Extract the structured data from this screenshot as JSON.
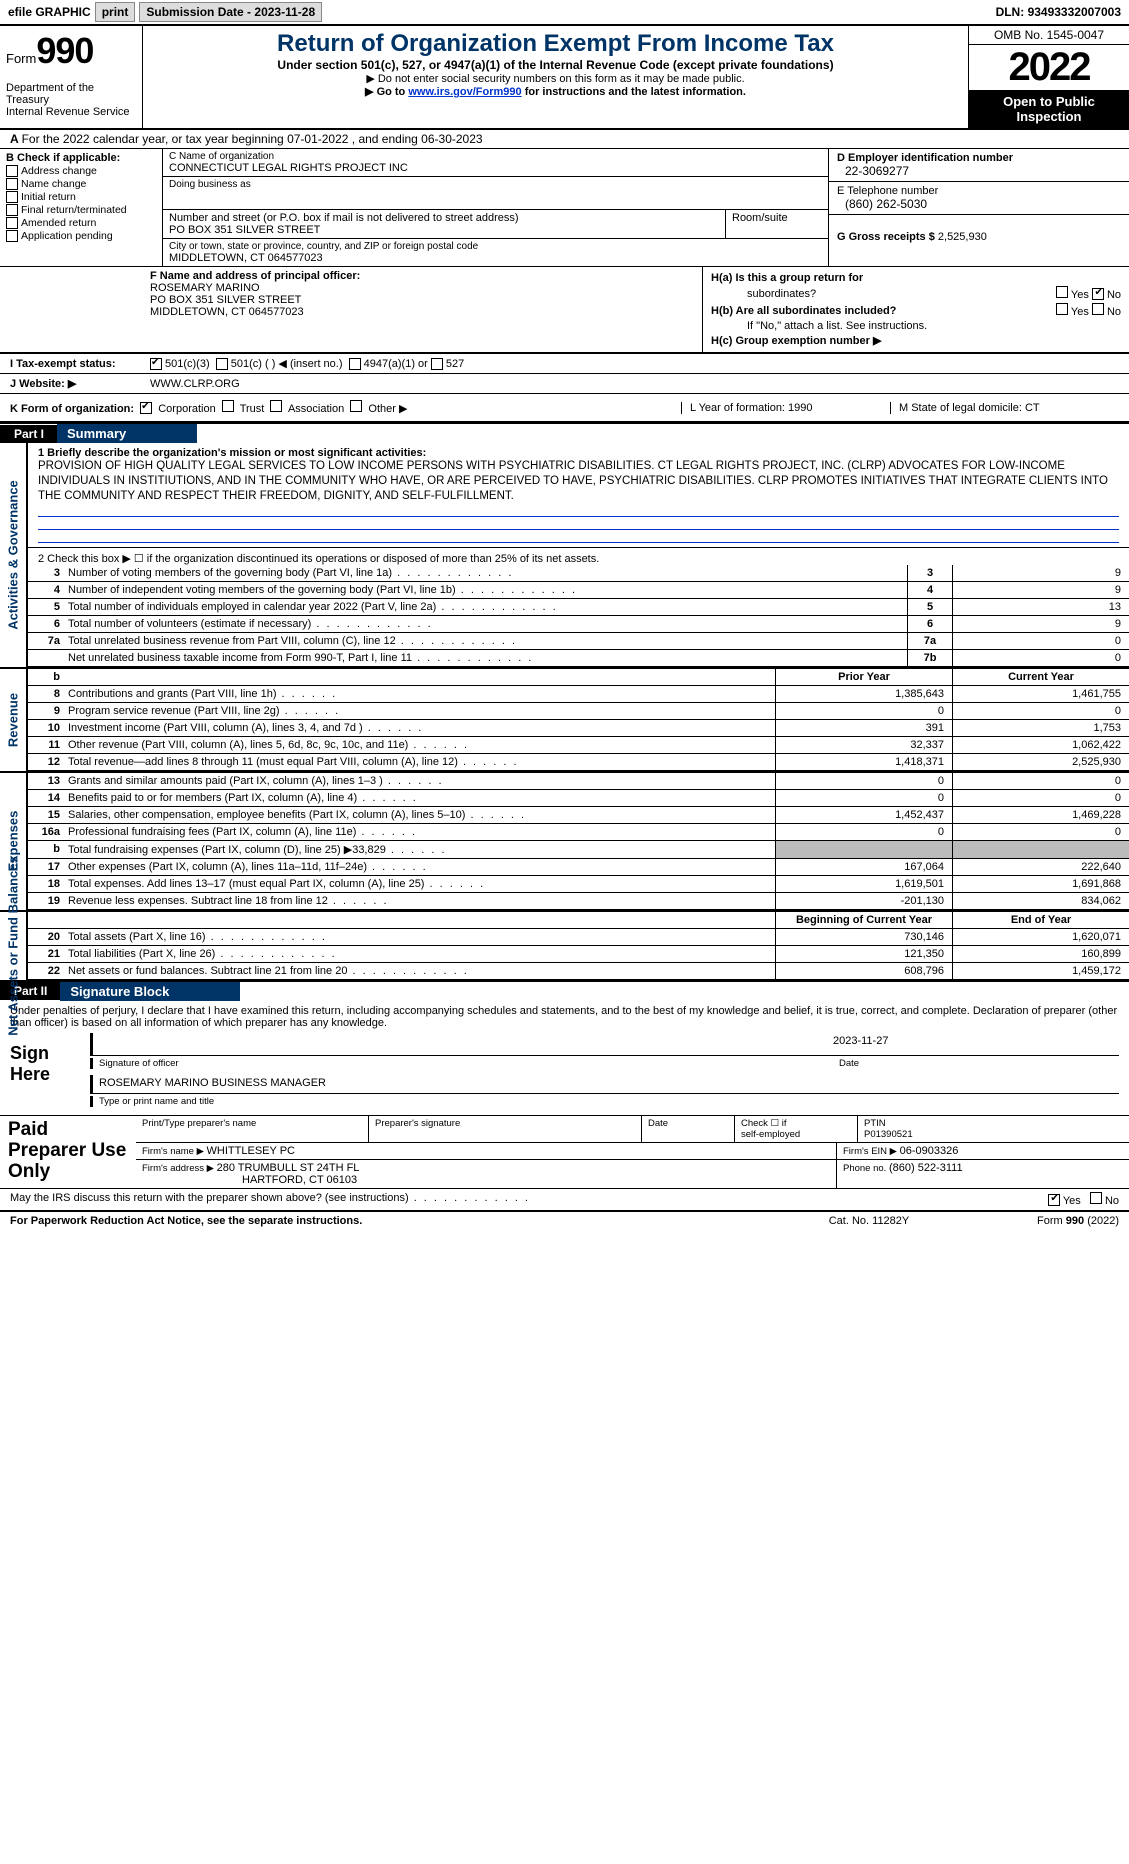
{
  "topbar": {
    "efile": "efile GRAPHIC",
    "print": "print",
    "sub_lbl": "Submission Date - ",
    "sub_date": "2023-11-28",
    "dln_lbl": "DLN: ",
    "dln": "93493332007003"
  },
  "header": {
    "form_word": "Form",
    "form_num": "990",
    "dept": "Department of the Treasury",
    "irs": "Internal Revenue Service",
    "title": "Return of Organization Exempt From Income Tax",
    "sub": "Under section 501(c), 527, or 4947(a)(1) of the Internal Revenue Code (except private foundations)",
    "note1": "▶ Do not enter social security numbers on this form as it may be made public.",
    "note2_pre": "▶ Go to ",
    "note2_link": "www.irs.gov/Form990",
    "note2_post": " for instructions and the latest information.",
    "omb": "OMB No. 1545-0047",
    "year": "2022",
    "open": "Open to Public Inspection"
  },
  "lineA": "For the 2022 calendar year, or tax year beginning 07-01-2022    , and ending 06-30-2023",
  "B": {
    "hdr": "B Check if applicable:",
    "opts": [
      "Address change",
      "Name change",
      "Initial return",
      "Final return/terminated",
      "Amended return",
      "Application pending"
    ]
  },
  "C": {
    "name_lbl": "C Name of organization",
    "name": "CONNECTICUT LEGAL RIGHTS PROJECT INC",
    "dba_lbl": "Doing business as",
    "dba": "",
    "addr_lbl": "Number and street (or P.O. box if mail is not delivered to street address)",
    "addr": "PO BOX 351 SILVER STREET",
    "room_lbl": "Room/suite",
    "city_lbl": "City or town, state or province, country, and ZIP or foreign postal code",
    "city": "MIDDLETOWN, CT  064577023"
  },
  "D": {
    "ein_lbl": "D Employer identification number",
    "ein": "22-3069277",
    "tel_lbl": "E Telephone number",
    "tel": "(860) 262-5030",
    "gross_lbl": "G Gross receipts $ ",
    "gross": "2,525,930"
  },
  "F": {
    "hdr": "F  Name and address of principal officer:",
    "name": "ROSEMARY MARINO",
    "addr1": "PO BOX 351 SILVER STREET",
    "addr2": "MIDDLETOWN, CT  064577023"
  },
  "H": {
    "a": "H(a)  Is this a group return for",
    "a2": "subordinates?",
    "b": "H(b)  Are all subordinates included?",
    "b2": "If \"No,\" attach a list. See instructions.",
    "c": "H(c)  Group exemption number ▶"
  },
  "I": {
    "lbl": "I    Tax-exempt status:",
    "o1": "501(c)(3)",
    "o2": "501(c) (  ) ◀ (insert no.)",
    "o3": "4947(a)(1) or",
    "o4": "527"
  },
  "J": {
    "lbl": "J   Website: ▶",
    "val": "WWW.CLRP.ORG"
  },
  "K": {
    "lbl": "K Form of organization:",
    "opts": [
      "Corporation",
      "Trust",
      "Association",
      "Other ▶"
    ],
    "L": "L Year of formation: 1990",
    "M": "M State of legal domicile: CT"
  },
  "part1": {
    "num": "Part I",
    "title": "Summary"
  },
  "mission": {
    "lbl": "1   Briefly describe the organization's mission or most significant activities:",
    "text": "PROVISION OF HIGH QUALITY LEGAL SERVICES TO LOW INCOME PERSONS WITH PSYCHIATRIC DISABILITIES. CT LEGAL RIGHTS PROJECT, INC. (CLRP) ADVOCATES FOR LOW-INCOME INDIVIDUALS IN INSTITIUTIONS, AND IN THE COMMUNITY WHO HAVE, OR ARE PERCEIVED TO HAVE, PSYCHIATRIC DISABILITIES. CLRP PROMOTES INITIATIVES THAT INTEGRATE CLIENTS INTO THE COMMUNITY AND RESPECT THEIR FREEDOM, DIGNITY, AND SELF-FULFILLMENT."
  },
  "line2": "2    Check this box ▶ ☐  if the organization discontinued its operations or disposed of more than 25% of its net assets.",
  "gov_lines": [
    {
      "n": "3",
      "d": "Number of voting members of the governing body (Part VI, line 1a)",
      "nc": "3",
      "v": "9"
    },
    {
      "n": "4",
      "d": "Number of independent voting members of the governing body (Part VI, line 1b)",
      "nc": "4",
      "v": "9"
    },
    {
      "n": "5",
      "d": "Total number of individuals employed in calendar year 2022 (Part V, line 2a)",
      "nc": "5",
      "v": "13"
    },
    {
      "n": "6",
      "d": "Total number of volunteers (estimate if necessary)",
      "nc": "6",
      "v": "9"
    },
    {
      "n": "7a",
      "d": "Total unrelated business revenue from Part VIII, column (C), line 12",
      "nc": "7a",
      "v": "0"
    },
    {
      "n": "",
      "d": "Net unrelated business taxable income from Form 990-T, Part I, line 11",
      "nc": "7b",
      "v": "0"
    }
  ],
  "py_cy_hdr": {
    "b": "b",
    "py": "Prior Year",
    "cy": "Current Year"
  },
  "rev_lines": [
    {
      "n": "8",
      "d": "Contributions and grants (Part VIII, line 1h)",
      "p": "1,385,643",
      "c": "1,461,755"
    },
    {
      "n": "9",
      "d": "Program service revenue (Part VIII, line 2g)",
      "p": "0",
      "c": "0"
    },
    {
      "n": "10",
      "d": "Investment income (Part VIII, column (A), lines 3, 4, and 7d )",
      "p": "391",
      "c": "1,753"
    },
    {
      "n": "11",
      "d": "Other revenue (Part VIII, column (A), lines 5, 6d, 8c, 9c, 10c, and 11e)",
      "p": "32,337",
      "c": "1,062,422"
    },
    {
      "n": "12",
      "d": "Total revenue—add lines 8 through 11 (must equal Part VIII, column (A), line 12)",
      "p": "1,418,371",
      "c": "2,525,930"
    }
  ],
  "exp_lines": [
    {
      "n": "13",
      "d": "Grants and similar amounts paid (Part IX, column (A), lines 1–3 )",
      "p": "0",
      "c": "0"
    },
    {
      "n": "14",
      "d": "Benefits paid to or for members (Part IX, column (A), line 4)",
      "p": "0",
      "c": "0"
    },
    {
      "n": "15",
      "d": "Salaries, other compensation, employee benefits (Part IX, column (A), lines 5–10)",
      "p": "1,452,437",
      "c": "1,469,228"
    },
    {
      "n": "16a",
      "d": "Professional fundraising fees (Part IX, column (A), line 11e)",
      "p": "0",
      "c": "0"
    },
    {
      "n": "b",
      "d": "Total fundraising expenses (Part IX, column (D), line 25) ▶33,829",
      "p": "grey",
      "c": "grey"
    },
    {
      "n": "17",
      "d": "Other expenses (Part IX, column (A), lines 11a–11d, 11f–24e)",
      "p": "167,064",
      "c": "222,640"
    },
    {
      "n": "18",
      "d": "Total expenses. Add lines 13–17 (must equal Part IX, column (A), line 25)",
      "p": "1,619,501",
      "c": "1,691,868"
    },
    {
      "n": "19",
      "d": "Revenue less expenses. Subtract line 18 from line 12",
      "p": "-201,130",
      "c": "834,062"
    }
  ],
  "na_hdr": {
    "py": "Beginning of Current Year",
    "cy": "End of Year"
  },
  "na_lines": [
    {
      "n": "20",
      "d": "Total assets (Part X, line 16)",
      "p": "730,146",
      "c": "1,620,071"
    },
    {
      "n": "21",
      "d": "Total liabilities (Part X, line 26)",
      "p": "121,350",
      "c": "160,899"
    },
    {
      "n": "22",
      "d": "Net assets or fund balances. Subtract line 21 from line 20",
      "p": "608,796",
      "c": "1,459,172"
    }
  ],
  "part2": {
    "num": "Part II",
    "title": "Signature Block"
  },
  "sig": {
    "decl": "Under penalties of perjury, I declare that I have examined this return, including accompanying schedules and statements, and to the best of my knowledge and belief, it is true, correct, and complete. Declaration of preparer (other than officer) is based on all information of which preparer has any knowledge.",
    "here": "Sign Here",
    "sig_of": "Signature of officer",
    "date": "Date",
    "date_val": "2023-11-27",
    "name": "ROSEMARY MARINO  BUSINESS MANAGER",
    "name_lbl": "Type or print name and title"
  },
  "paid": {
    "hdr": "Paid Preparer Use Only",
    "c1": "Print/Type preparer's name",
    "c2": "Preparer's signature",
    "c3": "Date",
    "c4a": "Check ☐ if",
    "c4b": "self-employed",
    "c5a": "PTIN",
    "c5b": "P01390521",
    "firm_lbl": "Firm's name      ▶ ",
    "firm": "WHITTLESEY PC",
    "fein_lbl": "Firm's EIN ▶ ",
    "fein": "06-0903326",
    "addr_lbl": "Firm's address ▶ ",
    "addr1": "280 TRUMBULL ST 24TH FL",
    "addr2": "HARTFORD, CT  06103",
    "phone_lbl": "Phone no. ",
    "phone": "(860) 522-3111"
  },
  "may": "May the IRS discuss this return with the preparer shown above? (see instructions)",
  "footer": {
    "l": "For Paperwork Reduction Act Notice, see the separate instructions.",
    "m": "Cat. No. 11282Y",
    "r": "Form 990 (2022)"
  },
  "side_labels": {
    "gov": "Activities & Governance",
    "rev": "Revenue",
    "exp": "Expenses",
    "na": "Net Assets or Fund Balances"
  },
  "yes": "Yes",
  "no": "No"
}
